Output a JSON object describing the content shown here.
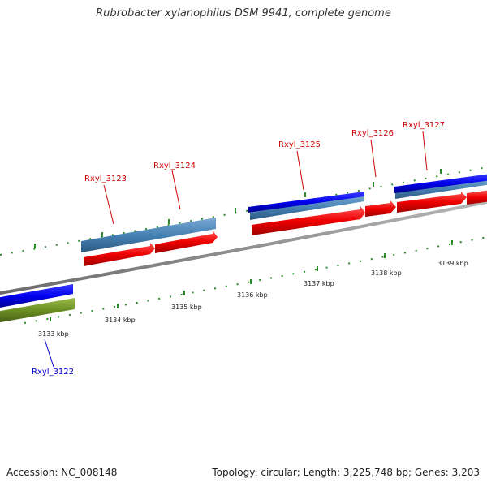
{
  "title": "Rubrobacter xylanophilus DSM 9941, complete genome",
  "footer": {
    "accession": "Accession: NC_008148",
    "summary": "Topology: circular; Length: 3,225,748 bp; Genes: 3,203"
  },
  "scale": {
    "tick_labels": [
      "3133 kbp",
      "3134 kbp",
      "3135 kbp",
      "3136 kbp",
      "3137 kbp",
      "3138 kbp",
      "3139 kbp"
    ]
  },
  "genes": [
    {
      "id": "Rxyl_3122",
      "color": "#0000cc"
    },
    {
      "id": "Rxyl_3123",
      "color": "#cc0000"
    },
    {
      "id": "Rxyl_3124",
      "color": "#cc0000"
    },
    {
      "id": "Rxyl_3125",
      "color": "#cc0000"
    },
    {
      "id": "Rxyl_3126",
      "color": "#cc0000"
    },
    {
      "id": "Rxyl_3127",
      "color": "#cc0000"
    }
  ],
  "colors": {
    "forward_cds": "#ff0000",
    "reverse_cds": "#0000ff",
    "forward_gene": "#4682b4",
    "reverse_gene": "#6b8e23",
    "backbone": "#8c8c8c",
    "tick": "#2a8a2a"
  }
}
